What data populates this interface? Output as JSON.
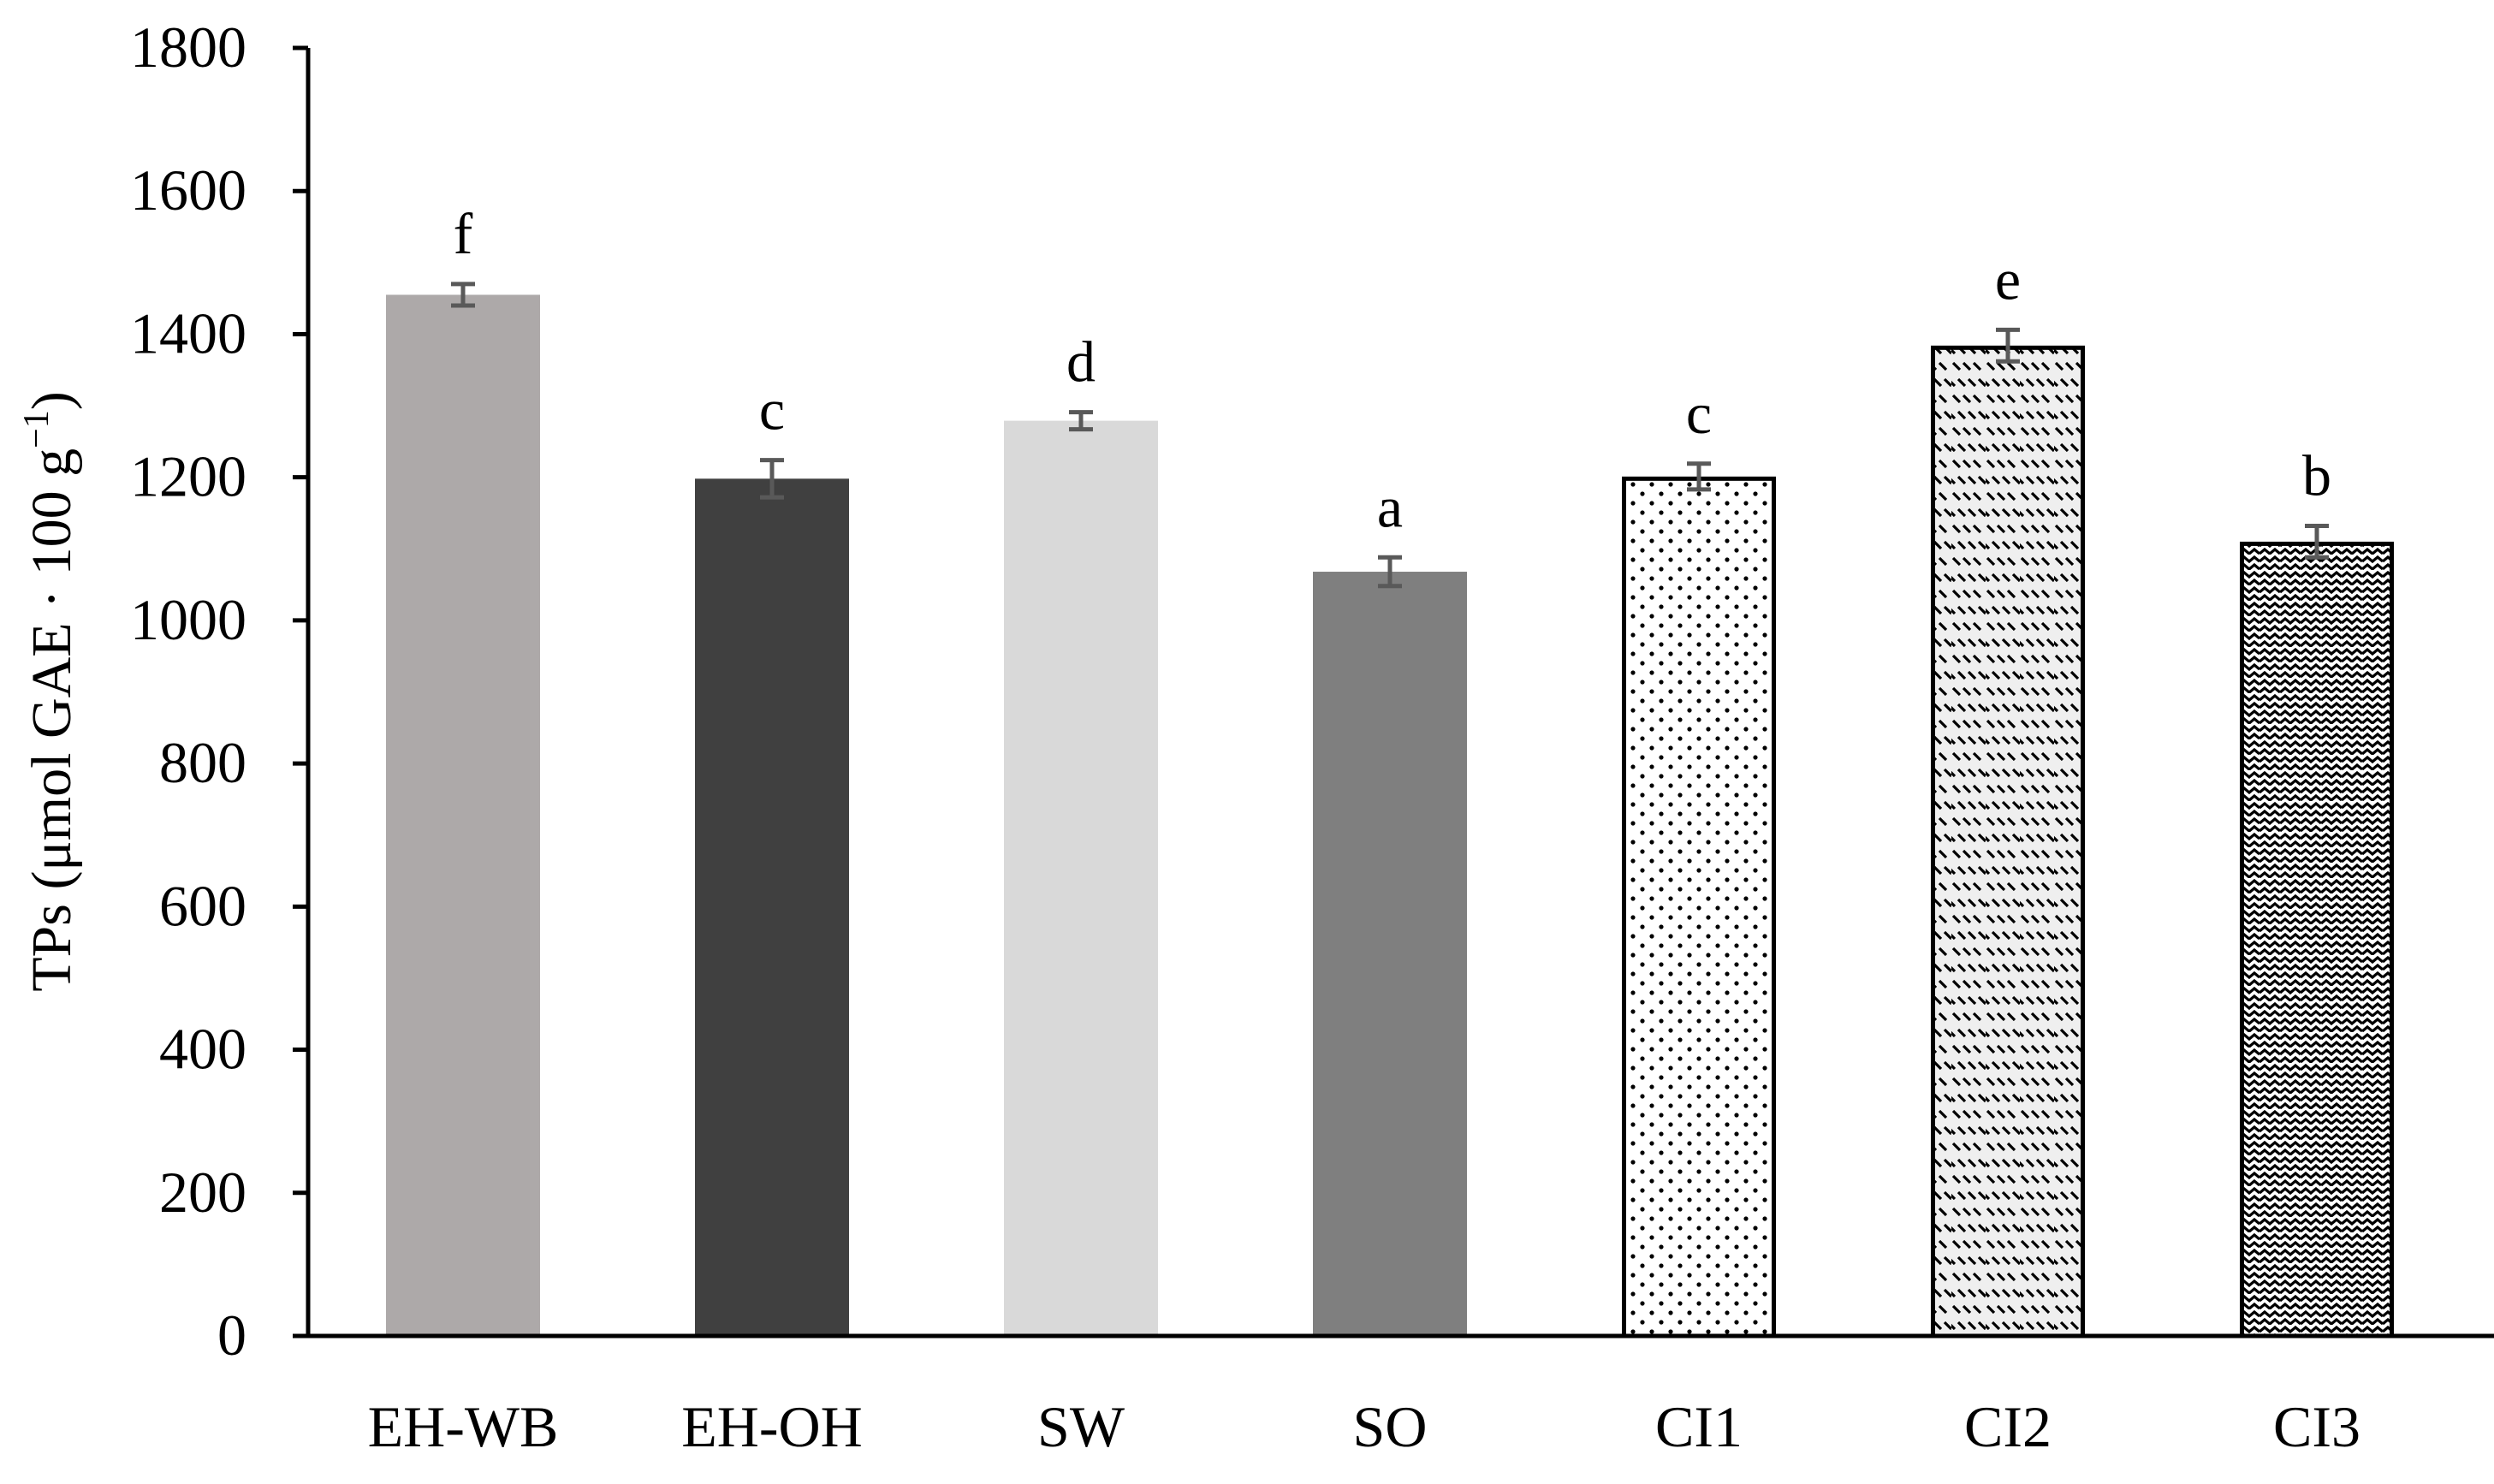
{
  "chart_data": {
    "type": "bar",
    "title": "",
    "xlabel": "",
    "ylabel": "TPs (μmol GAE · 100 g",
    "ylabel_sup": "−1",
    "ylabel_close": ")",
    "ylim": [
      0,
      1800
    ],
    "yticks": [
      0,
      200,
      400,
      600,
      800,
      1000,
      1200,
      1400,
      1600,
      1800
    ],
    "ytick_labels": [
      "0",
      "200",
      "400",
      "600",
      "800",
      "1000",
      "1200",
      "1400",
      "1600",
      "1800"
    ],
    "grid": false,
    "legend": "none",
    "categories": [
      "EH-WB",
      "EH-OH",
      "SW",
      "SO",
      "CI1",
      "CI2",
      "CI3"
    ],
    "values": [
      1455,
      1198,
      1279,
      1068,
      1201,
      1384,
      1110
    ],
    "errors": [
      15,
      26,
      12,
      20,
      18,
      22,
      22
    ],
    "significance": [
      "f",
      "c",
      "d",
      "a",
      "c",
      "e",
      "b"
    ],
    "fills": [
      {
        "type": "solid",
        "color": "#ADA9A9"
      },
      {
        "type": "solid",
        "color": "#404040"
      },
      {
        "type": "solid",
        "color": "#D9D9D9"
      },
      {
        "type": "solid",
        "color": "#7F7F7F"
      },
      {
        "type": "pattern",
        "pattern": "dots",
        "outline": "#000000"
      },
      {
        "type": "pattern",
        "pattern": "dashes",
        "outline": "#000000"
      },
      {
        "type": "pattern",
        "pattern": "waves",
        "outline": "#000000"
      }
    ],
    "error_bar_color": "#595959",
    "axis_color": "#000000"
  }
}
